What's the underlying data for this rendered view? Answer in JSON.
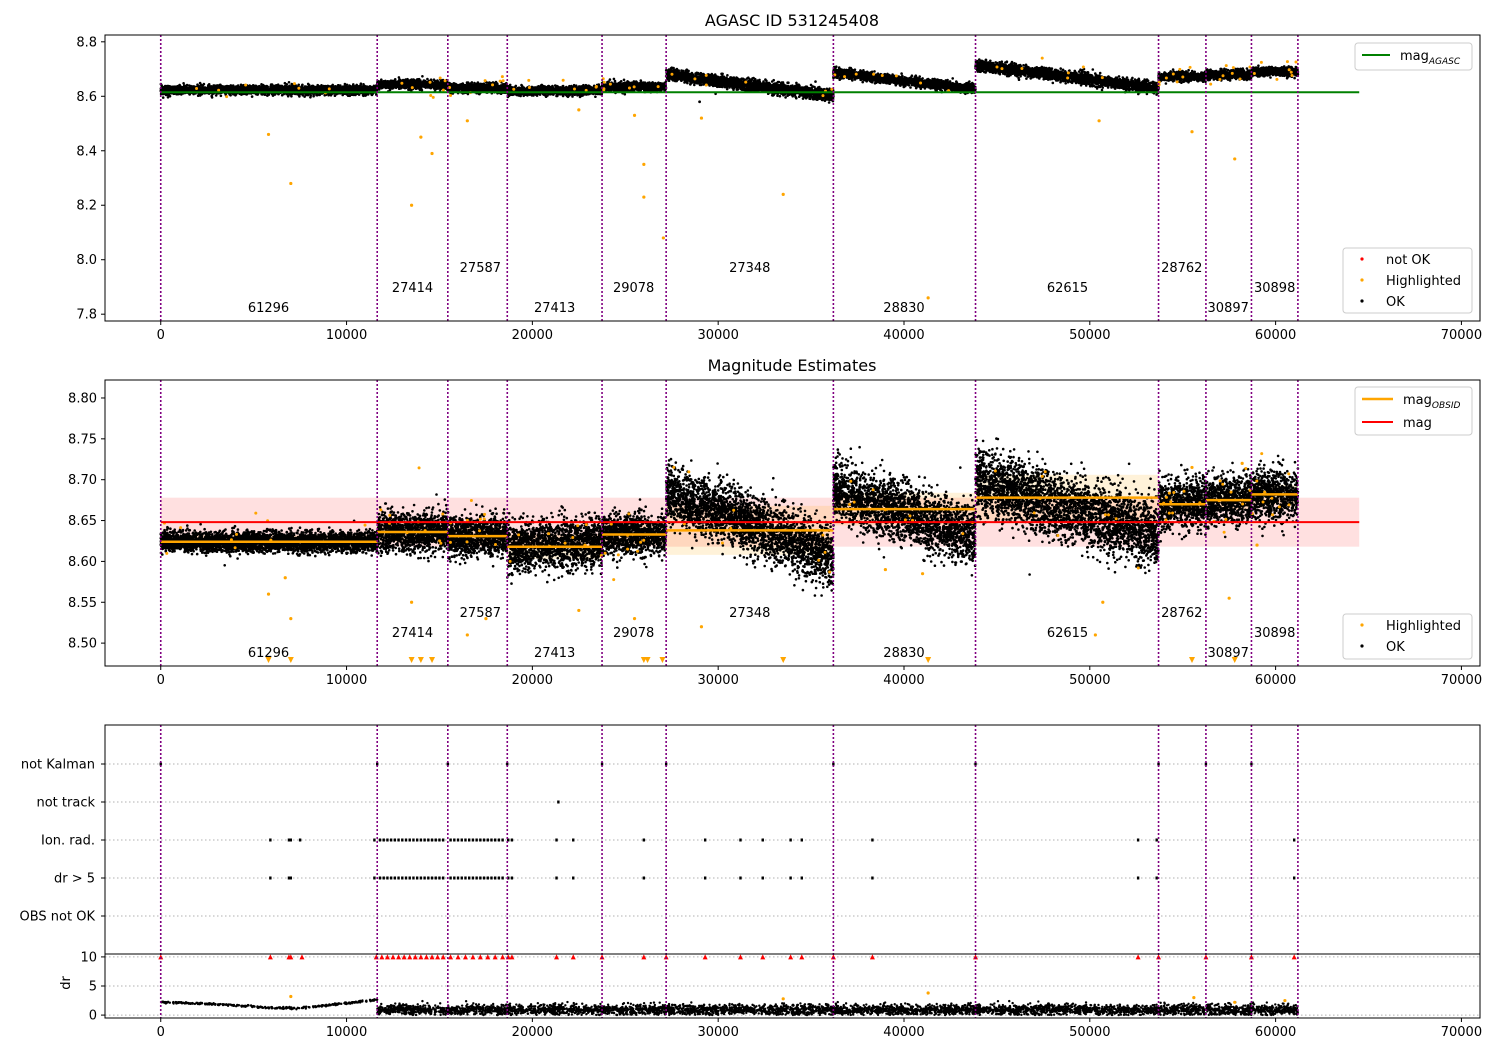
{
  "figure": {
    "obsid_lines": [
      0,
      11650,
      15450,
      18650,
      23750,
      27200,
      36200,
      43850,
      53700,
      56250,
      58700,
      61200
    ],
    "obsid_labels": [
      {
        "obsid": "61296",
        "x": 5800,
        "tier": 0
      },
      {
        "obsid": "27414",
        "x": 13550,
        "tier": 1
      },
      {
        "obsid": "27587",
        "x": 17200,
        "tier": 2
      },
      {
        "obsid": "27413",
        "x": 21200,
        "tier": 0
      },
      {
        "obsid": "29078",
        "x": 25450,
        "tier": 1
      },
      {
        "obsid": "27348",
        "x": 31700,
        "tier": 2
      },
      {
        "obsid": "28830",
        "x": 40000,
        "tier": 0
      },
      {
        "obsid": "62615",
        "x": 48800,
        "tier": 1
      },
      {
        "obsid": "28762",
        "x": 54950,
        "tier": 2
      },
      {
        "obsid": "30897",
        "x": 57450,
        "tier": 0
      },
      {
        "obsid": "30898",
        "x": 59950,
        "tier": 1
      }
    ],
    "colors": {
      "ok": "#000000",
      "highlighted": "#FFA500",
      "not_ok": "#FF0000",
      "agasc": "#008000",
      "mag": "#FF0000",
      "mag_obsid": "#FFA500",
      "vline": "#800080"
    }
  },
  "chart_data": [
    {
      "type": "scatter",
      "title": "AGASC ID 531245408",
      "xlim": [
        -3000,
        71000
      ],
      "ylim": [
        7.775,
        8.825
      ],
      "yticks": [
        7.8,
        8.0,
        8.2,
        8.4,
        8.6,
        8.8
      ],
      "xticks": [
        0,
        10000,
        20000,
        30000,
        40000,
        50000,
        60000,
        70000
      ],
      "xtick_labels": [
        "0",
        "10000",
        "20000",
        "30000",
        "40000",
        "50000",
        "60000",
        "70000"
      ],
      "ytick_labels": [
        "7.8",
        "8.0",
        "8.2",
        "8.4",
        "8.6",
        "8.8"
      ],
      "mag_agasc": 8.615,
      "agasc_line_x": [
        0,
        64500
      ],
      "obsid_means": [
        8.623,
        8.643,
        8.63,
        8.62,
        8.635,
        8.65,
        8.67,
        8.68,
        8.68,
        8.685,
        8.69
      ],
      "segment_trends": [
        [
          8.623,
          8.623
        ],
        [
          8.643,
          8.643
        ],
        [
          8.63,
          8.63
        ],
        [
          8.618,
          8.622
        ],
        [
          8.635,
          8.635
        ],
        [
          8.68,
          8.603
        ],
        [
          8.688,
          8.625
        ],
        [
          8.715,
          8.63
        ],
        [
          8.672,
          8.672
        ],
        [
          8.68,
          8.68
        ],
        [
          8.69,
          8.69
        ]
      ],
      "highlighted_outliers": [
        [
          5800,
          8.46
        ],
        [
          7000,
          8.28
        ],
        [
          13500,
          8.2
        ],
        [
          14000,
          8.45
        ],
        [
          14600,
          8.39
        ],
        [
          26000,
          8.35
        ],
        [
          26000,
          8.23
        ],
        [
          27050,
          8.08
        ],
        [
          33500,
          8.24
        ],
        [
          41300,
          7.86
        ],
        [
          55500,
          8.47
        ],
        [
          57800,
          8.37
        ],
        [
          29100,
          8.52
        ],
        [
          50500,
          8.51
        ],
        [
          16500,
          8.51
        ],
        [
          25500,
          8.53
        ],
        [
          22500,
          8.55
        ]
      ],
      "ok_outliers": [
        [
          29000,
          8.58
        ],
        [
          36000,
          8.6
        ]
      ],
      "legend_top": {
        "placement": "upper right",
        "entries": [
          {
            "label": "mag",
            "sub": "AGASC"
          }
        ]
      },
      "legend_bottom": {
        "placement": "lower right",
        "entries": [
          {
            "label": "not OK"
          },
          {
            "label": "Highlighted"
          },
          {
            "label": "OK"
          }
        ]
      }
    },
    {
      "type": "scatter",
      "title": "Magnitude Estimates",
      "xlim": [
        -3000,
        71000
      ],
      "ylim": [
        8.472,
        8.822
      ],
      "yticks": [
        8.5,
        8.55,
        8.6,
        8.65,
        8.7,
        8.75,
        8.8
      ],
      "ytick_labels": [
        "8.50",
        "8.55",
        "8.60",
        "8.65",
        "8.70",
        "8.75",
        "8.80"
      ],
      "xticks": [
        0,
        10000,
        20000,
        30000,
        40000,
        50000,
        60000,
        70000
      ],
      "xtick_labels": [
        "0",
        "10000",
        "20000",
        "30000",
        "40000",
        "50000",
        "60000",
        "70000"
      ],
      "mag": 8.648,
      "mag_band": [
        8.618,
        8.678
      ],
      "mag_line_x": [
        0,
        64500
      ],
      "obsid_mag": [
        8.624,
        8.636,
        8.631,
        8.618,
        8.633,
        8.638,
        8.664,
        8.678,
        8.67,
        8.675,
        8.682
      ],
      "obsid_band_halfwidth": [
        0.008,
        0.012,
        0.012,
        0.015,
        0.012,
        0.03,
        0.02,
        0.028,
        0.012,
        0.012,
        0.012
      ],
      "segment_trends": [
        [
          8.624,
          8.624
        ],
        [
          8.636,
          8.636
        ],
        [
          8.631,
          8.631
        ],
        [
          8.618,
          8.622
        ],
        [
          8.633,
          8.633
        ],
        [
          8.685,
          8.605
        ],
        [
          8.685,
          8.632
        ],
        [
          8.7,
          8.632
        ],
        [
          8.67,
          8.67
        ],
        [
          8.675,
          8.675
        ],
        [
          8.682,
          8.682
        ]
      ],
      "segment_scatter": [
        0.006,
        0.012,
        0.012,
        0.015,
        0.012,
        0.018,
        0.018,
        0.02,
        0.015,
        0.015,
        0.015
      ],
      "below_markers_x": [
        5800,
        7000,
        13500,
        14000,
        14600,
        26000,
        26200,
        27000,
        33500,
        41300,
        55500,
        57800
      ],
      "highlighted_outliers": [
        [
          5800,
          8.56
        ],
        [
          6700,
          8.58
        ],
        [
          7000,
          8.53
        ],
        [
          13500,
          8.55
        ],
        [
          16500,
          8.51
        ],
        [
          17500,
          8.53
        ],
        [
          22500,
          8.54
        ],
        [
          25500,
          8.53
        ],
        [
          29100,
          8.52
        ],
        [
          39000,
          8.59
        ],
        [
          41000,
          8.585
        ],
        [
          50300,
          8.51
        ],
        [
          50700,
          8.55
        ],
        [
          55500,
          8.715
        ],
        [
          57500,
          8.555
        ],
        [
          58200,
          8.72
        ],
        [
          59000,
          8.62
        ]
      ],
      "legend_top": {
        "placement": "upper right",
        "entries": [
          {
            "label": "mag",
            "sub": "OBSID"
          },
          {
            "label": "mag"
          }
        ]
      },
      "legend_bottom": {
        "placement": "lower right",
        "entries": [
          {
            "label": "Highlighted"
          },
          {
            "label": "OK"
          }
        ]
      }
    },
    {
      "type": "scatter",
      "xlim": [
        -3000,
        71000
      ],
      "flag_rows": [
        "not Kalman",
        "not track",
        "Ion. rad.",
        "dr > 5",
        "OBS not OK"
      ],
      "flag_points": {
        "not Kalman": [
          0,
          11650,
          15450,
          18650,
          23750,
          27200,
          36200,
          43850,
          53700,
          56250,
          58700
        ],
        "not track": [
          21400
        ],
        "Ion. rad.": [
          5900,
          6900,
          7000,
          7500,
          11500,
          11800,
          12000,
          12200,
          12400,
          12600,
          12800,
          13000,
          13200,
          13400,
          13600,
          13800,
          14000,
          14200,
          14400,
          14600,
          14800,
          15000,
          15200,
          15600,
          15800,
          16000,
          16200,
          16400,
          16600,
          16800,
          17000,
          17200,
          17400,
          17600,
          17800,
          18000,
          18200,
          18400,
          18700,
          18900,
          21300,
          22200,
          26000,
          29300,
          31200,
          32400,
          33900,
          34500,
          38300,
          52600,
          53600,
          61000
        ],
        "dr > 5": [
          5900,
          6900,
          7000,
          11500,
          11800,
          12000,
          12200,
          12400,
          12600,
          12800,
          13000,
          13200,
          13400,
          13600,
          13800,
          14000,
          14200,
          14400,
          14600,
          14800,
          15000,
          15200,
          15600,
          15800,
          16000,
          16200,
          16400,
          16600,
          16800,
          17000,
          17200,
          17400,
          17600,
          17800,
          18000,
          18200,
          18400,
          18700,
          18900,
          21300,
          22200,
          26000,
          29300,
          31200,
          32400,
          33900,
          34500,
          38300,
          52600,
          53600,
          61000
        ],
        "OBS not OK": []
      }
    },
    {
      "type": "scatter",
      "ylabel": "dr",
      "xlim": [
        -3000,
        71000
      ],
      "ylim": [
        -0.5,
        10.5
      ],
      "yticks": [
        0,
        5,
        10
      ],
      "ytick_labels": [
        "0",
        "5",
        "10"
      ],
      "xticks": [
        0,
        10000,
        20000,
        30000,
        40000,
        50000,
        60000,
        70000
      ],
      "xtick_labels": [
        "0",
        "10000",
        "20000",
        "30000",
        "40000",
        "50000",
        "60000",
        "70000"
      ],
      "first_segment_curve": [
        [
          0,
          2.2
        ],
        [
          2000,
          2.0
        ],
        [
          4000,
          1.7
        ],
        [
          6000,
          1.2
        ],
        [
          7500,
          1.2
        ],
        [
          9000,
          1.7
        ],
        [
          11600,
          2.6
        ]
      ],
      "typical_dr": 0.9,
      "capped_not_ok_x": [
        0,
        5900,
        6900,
        7000,
        7600,
        11600,
        11900,
        12200,
        12500,
        12800,
        13100,
        13400,
        13700,
        14000,
        14300,
        14600,
        14900,
        15200,
        15600,
        16000,
        16400,
        16800,
        17200,
        17600,
        18000,
        18400,
        18700,
        18900,
        21300,
        22200,
        23750,
        26000,
        27200,
        29300,
        31200,
        32400,
        33900,
        34500,
        36200,
        38300,
        43850,
        52600,
        53700,
        56250,
        58700,
        61000
      ],
      "highlighted_points": [
        [
          7000,
          3.2
        ],
        [
          33500,
          2.8
        ],
        [
          41300,
          3.8
        ],
        [
          55600,
          3.0
        ],
        [
          57800,
          2.2
        ],
        [
          60500,
          2.5
        ]
      ]
    }
  ]
}
